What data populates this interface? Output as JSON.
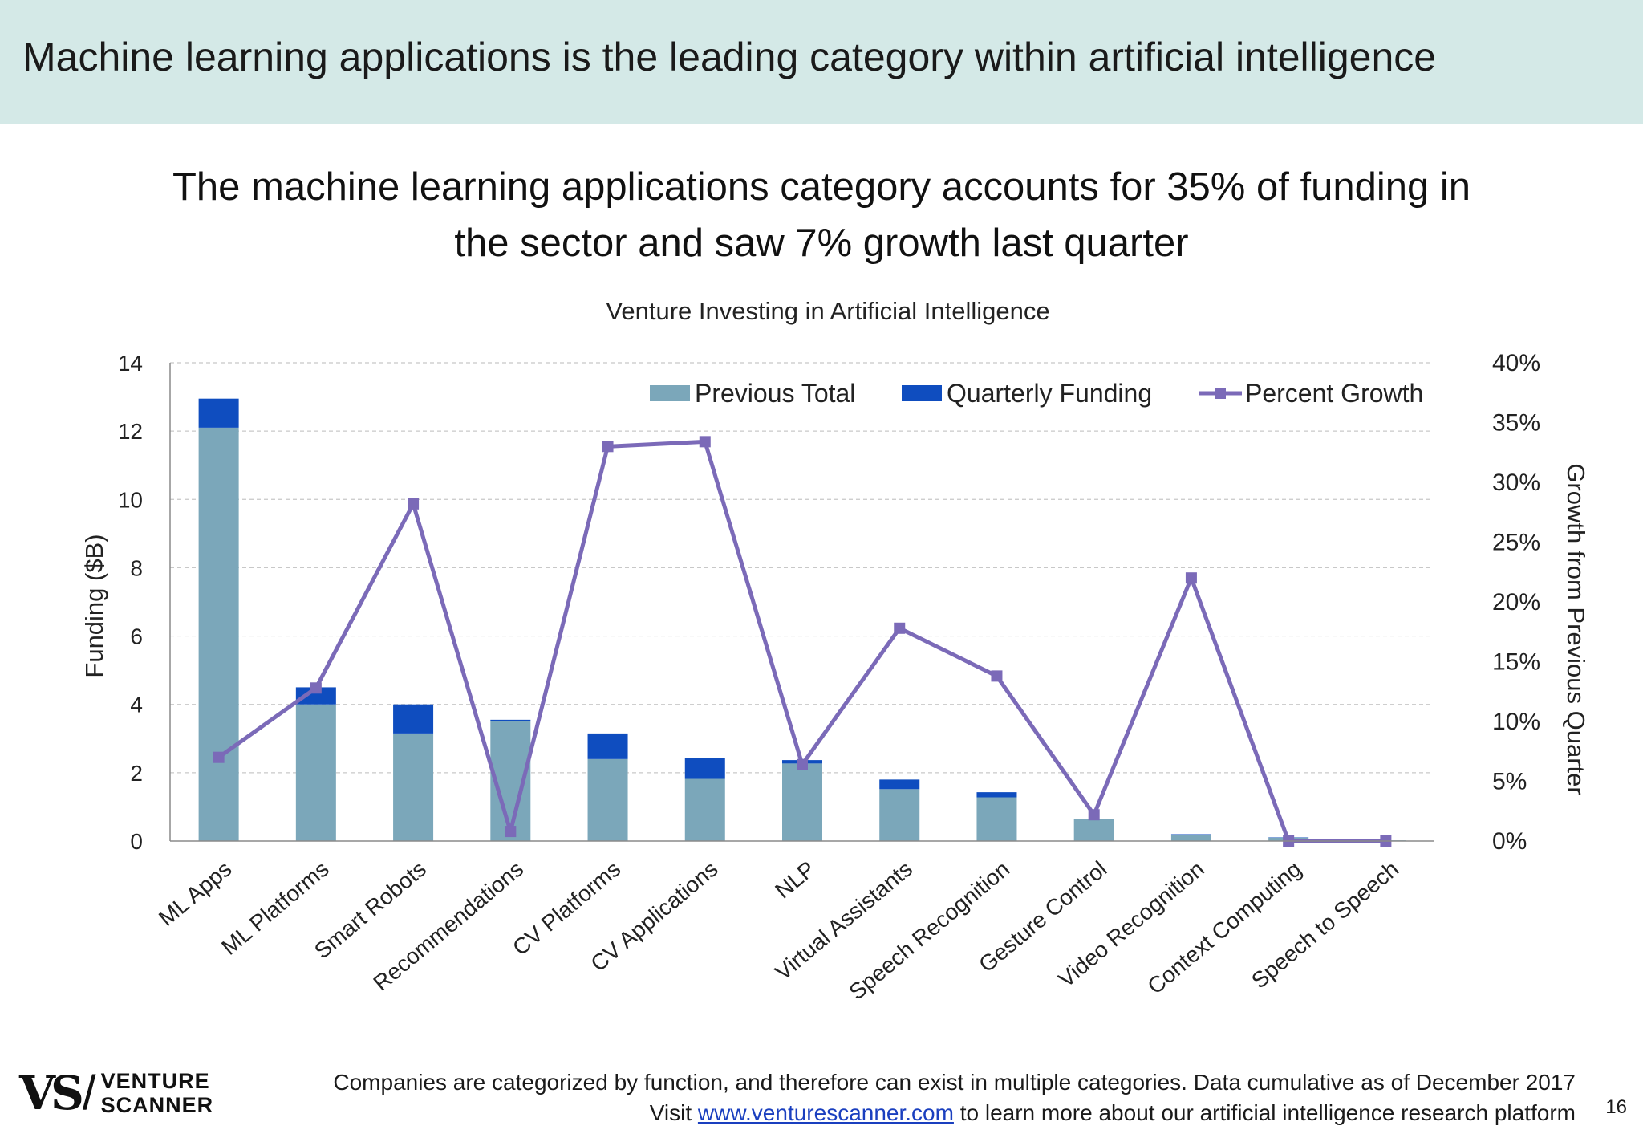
{
  "header": {
    "title": "Machine learning applications is the leading category within artificial intelligence"
  },
  "subtitle": {
    "line1": "The machine learning applications category accounts for 35% of funding in",
    "line2": "the sector and saw 7% growth last quarter"
  },
  "chart_data": {
    "type": "bar",
    "title": "Venture Investing in Artificial Intelligence",
    "ylabel": "Funding ($B)",
    "y2label": "Growth from Previous Quarter",
    "ylim": [
      0,
      14
    ],
    "yticks": [
      "0",
      "2",
      "4",
      "6",
      "8",
      "10",
      "12",
      "14"
    ],
    "y2lim": [
      0,
      0.4
    ],
    "y2ticks": [
      "0%",
      "5%",
      "10%",
      "15%",
      "20%",
      "25%",
      "30%",
      "35%",
      "40%"
    ],
    "grid": true,
    "legend_position": "top-right",
    "stacked": true,
    "categories": [
      "ML Apps",
      "ML Platforms",
      "Smart Robots",
      "Recommendations",
      "CV Platforms",
      "CV Applications",
      "NLP",
      "Virtual Assistants",
      "Speech Recognition",
      "Gesture Control",
      "Video Recognition",
      "Context Computing",
      "Speech to Speech"
    ],
    "series": [
      {
        "name": "Previous Total",
        "kind": "bar",
        "color": "#7ba7ba",
        "values": [
          12.1,
          4.0,
          3.15,
          3.5,
          2.4,
          1.82,
          2.27,
          1.52,
          1.28,
          0.65,
          0.18,
          0.1,
          0.02
        ]
      },
      {
        "name": "Quarterly Funding",
        "kind": "bar",
        "color": "#0f4dbf",
        "values": [
          0.85,
          0.5,
          0.85,
          0.05,
          0.75,
          0.6,
          0.1,
          0.28,
          0.15,
          0.0,
          0.02,
          0.01,
          0.0
        ]
      },
      {
        "name": "Percent Growth",
        "kind": "line",
        "axis": "right",
        "color": "#7b6ab8",
        "values": [
          0.07,
          0.128,
          0.282,
          0.008,
          0.33,
          0.334,
          0.064,
          0.178,
          0.138,
          0.022,
          0.22,
          0.0,
          0.0
        ]
      }
    ]
  },
  "footer": {
    "note_line1": "Companies are categorized by function, and therefore can exist in multiple categories. Data cumulative as of December 2017",
    "note_line2_prefix": "Visit ",
    "note_link": "www.venturescanner.com",
    "note_line2_suffix": " to learn more about our artificial intelligence research platform",
    "page_number": "16",
    "logo_text_1": "VENTURE",
    "logo_text_2": "SCANNER"
  }
}
